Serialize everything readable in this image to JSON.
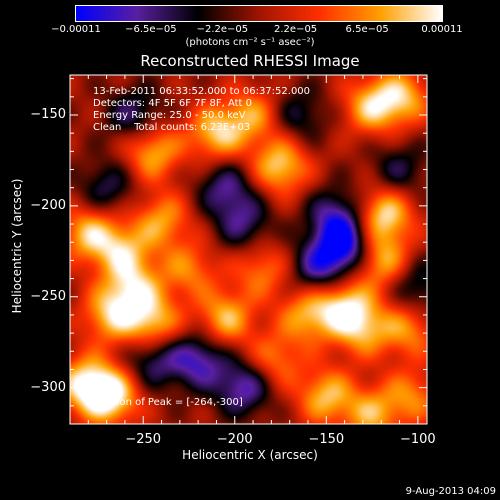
{
  "chart_data": {
    "type": "heatmap",
    "title": "Reconstructed RHESSI Image",
    "xlabel": "Heliocentric X (arcsec)",
    "ylabel": "Heliocentric Y (arcsec)",
    "xlim": [
      -290,
      -95
    ],
    "ylim": [
      -320,
      -128
    ],
    "xticks": [
      -250,
      -200,
      -150,
      -100
    ],
    "xtick_labels": [
      "−250",
      "−200",
      "−150",
      "−100"
    ],
    "yticks": [
      -150,
      -200,
      -250,
      -300
    ],
    "ytick_labels": [
      "−150",
      "−200",
      "−250",
      "−300"
    ],
    "colorbar": {
      "min": -0.00011,
      "max": 0.00011,
      "tick_values": [
        -0.00011,
        -6.5e-05,
        -2.2e-05,
        2.2e-05,
        6.5e-05,
        0.00011
      ],
      "tick_labels": [
        "−0.00011",
        "−6.5e−05",
        "−2.2e−05",
        "2.2e−05",
        "6.5e−05",
        "0.00011"
      ],
      "units": "(photons cm⁻² s⁻¹ asec⁻²)",
      "colors": [
        "#0000ff",
        "#5a1fa0",
        "#000000",
        "#a01400",
        "#ff3000",
        "#ffa000",
        "#ffffff"
      ]
    },
    "annotations": [
      "13-Feb-2011 06:33:52.000 to 06:37:52.000",
      "Detectors: 4F 5F 6F 7F 8F, Att 0",
      "Energy Range: 25.0 - 50.0 keV",
      "Clean    Total counts: 6.23E+03"
    ],
    "peak_label": "Position of Peak = [-264,-300]",
    "peak": [
      -264,
      -300
    ],
    "sources": [
      {
        "x": -268,
        "y": -305,
        "value": 1.0
      },
      {
        "x": -282,
        "y": -298,
        "value": 0.85
      },
      {
        "x": -245,
        "y": -170,
        "value": 0.75
      },
      {
        "x": -210,
        "y": -160,
        "value": 0.8
      },
      {
        "x": -175,
        "y": -178,
        "value": 0.85
      },
      {
        "x": -190,
        "y": -150,
        "value": 0.6
      },
      {
        "x": -125,
        "y": -145,
        "value": 0.75
      },
      {
        "x": -108,
        "y": -140,
        "value": 0.7
      },
      {
        "x": -118,
        "y": -205,
        "value": 0.9
      },
      {
        "x": -120,
        "y": -230,
        "value": 0.75
      },
      {
        "x": -262,
        "y": -225,
        "value": 0.7
      },
      {
        "x": -240,
        "y": -208,
        "value": 0.65
      },
      {
        "x": -225,
        "y": -235,
        "value": 0.55
      },
      {
        "x": -280,
        "y": -215,
        "value": 0.75
      },
      {
        "x": -268,
        "y": -260,
        "value": 0.75
      },
      {
        "x": -245,
        "y": -265,
        "value": 0.8
      },
      {
        "x": -255,
        "y": -245,
        "value": 0.7
      },
      {
        "x": -205,
        "y": -262,
        "value": 0.75
      },
      {
        "x": -185,
        "y": -235,
        "value": 0.55
      },
      {
        "x": -160,
        "y": -260,
        "value": 0.7
      },
      {
        "x": -140,
        "y": -255,
        "value": 0.8
      },
      {
        "x": -130,
        "y": -268,
        "value": 0.65
      },
      {
        "x": -105,
        "y": -268,
        "value": 0.6
      },
      {
        "x": -178,
        "y": -285,
        "value": 0.55
      },
      {
        "x": -150,
        "y": -305,
        "value": 0.75
      },
      {
        "x": -125,
        "y": -315,
        "value": 0.65
      },
      {
        "x": -103,
        "y": -305,
        "value": 0.55
      },
      {
        "x": -145,
        "y": -205,
        "value": -0.6
      },
      {
        "x": -140,
        "y": -222,
        "value": -1.0
      },
      {
        "x": -155,
        "y": -235,
        "value": -0.65
      },
      {
        "x": -220,
        "y": -285,
        "value": -0.75
      },
      {
        "x": -195,
        "y": -300,
        "value": -0.75
      },
      {
        "x": -245,
        "y": -285,
        "value": -0.6
      },
      {
        "x": -255,
        "y": -150,
        "value": -0.55
      },
      {
        "x": -270,
        "y": -190,
        "value": -0.5
      },
      {
        "x": -205,
        "y": -190,
        "value": -0.6
      },
      {
        "x": -195,
        "y": -210,
        "value": -0.55
      },
      {
        "x": -165,
        "y": -150,
        "value": -0.45
      },
      {
        "x": -110,
        "y": -180,
        "value": -0.45
      },
      {
        "x": -100,
        "y": -245,
        "value": -0.5
      }
    ]
  },
  "timestamp": "9-Aug-2013 04:09"
}
